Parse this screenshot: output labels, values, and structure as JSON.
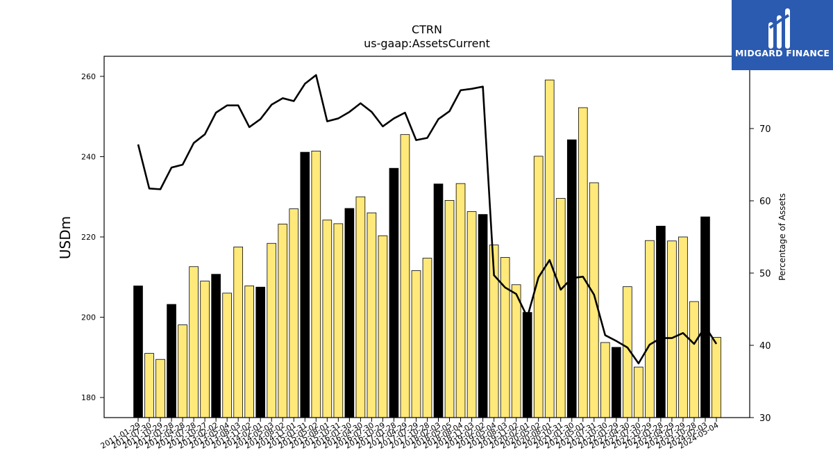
{
  "brand": {
    "name": "MIDGARD FINANCE",
    "logo_icon": "midgard-bars-logo",
    "color": "#2b5bb0"
  },
  "chart_data": {
    "type": "bar",
    "title": "CTRN",
    "subtitle": "us-gaap:AssetsCurrent",
    "ylabel": "USDm",
    "y2label": "Percentage of Assets",
    "ylim": [
      175,
      265
    ],
    "y2lim": [
      30,
      80
    ],
    "yticks": [
      180,
      200,
      220,
      240,
      260
    ],
    "y2ticks": [
      30,
      40,
      50,
      60,
      70
    ],
    "colors": {
      "highlight_bar": "#000000",
      "normal_bar": "#ffe97a",
      "line": "#000000"
    },
    "categories": [
      "2011-01-29",
      "2011-07-30",
      "2011-10-29",
      "2012-01-28",
      "2012-04-28",
      "2012-07-28",
      "2012-10-27",
      "2013-02-02",
      "2013-05-04",
      "2013-08-03",
      "2013-11-02",
      "2014-02-01",
      "2014-05-03",
      "2014-08-02",
      "2014-11-01",
      "2015-01-31",
      "2015-05-02",
      "2015-08-01",
      "2015-10-31",
      "2016-01-30",
      "2016-04-30",
      "2016-07-30",
      "2016-10-29",
      "2017-01-28",
      "2017-04-29",
      "2017-07-29",
      "2017-10-28",
      "2018-02-03",
      "2018-05-05",
      "2018-08-04",
      "2018-11-03",
      "2019-02-02",
      "2019-05-04",
      "2019-08-03",
      "2019-11-02",
      "2020-02-01",
      "2020-05-02",
      "2020-08-01",
      "2020-10-31",
      "2021-01-30",
      "2021-05-01",
      "2021-07-31",
      "2021-10-30",
      "2022-01-29",
      "2022-04-30",
      "2022-07-30",
      "2022-10-29",
      "2023-01-28",
      "2023-04-29",
      "2023-07-29",
      "2023-10-28",
      "2024-02-03",
      "2024-05-04"
    ],
    "highlight": [
      1,
      0,
      0,
      1,
      0,
      0,
      0,
      1,
      0,
      0,
      0,
      1,
      0,
      0,
      0,
      1,
      0,
      0,
      0,
      1,
      0,
      0,
      0,
      1,
      0,
      0,
      0,
      1,
      0,
      0,
      0,
      1,
      0,
      0,
      0,
      1,
      0,
      0,
      0,
      1,
      0,
      0,
      0,
      1,
      0,
      0,
      0,
      1,
      0,
      0,
      0,
      1,
      0
    ],
    "values": [
      207.8,
      191.0,
      189.5,
      203.2,
      198.1,
      212.6,
      209.0,
      210.7,
      206.0,
      217.5,
      207.8,
      207.5,
      218.4,
      223.2,
      227.0,
      241.1,
      241.4,
      224.2,
      223.3,
      227.1,
      230.0,
      226.0,
      220.3,
      237.1,
      245.5,
      211.6,
      214.7,
      233.2,
      229.1,
      233.3,
      226.3,
      225.6,
      218.0,
      214.9,
      208.1,
      201.2,
      240.1,
      259.1,
      229.6,
      244.2,
      252.2,
      233.5,
      193.7,
      192.5,
      207.6,
      187.6,
      219.1,
      222.7,
      219.0,
      220.0,
      203.9,
      225.0,
      195.0
    ],
    "line_series": {
      "name": "Percentage of Assets",
      "values": [
        67.8,
        61.7,
        61.6,
        64.6,
        65.0,
        68.0,
        69.2,
        72.2,
        73.2,
        73.2,
        70.2,
        71.3,
        73.3,
        74.2,
        73.8,
        76.2,
        77.4,
        71.0,
        71.4,
        72.3,
        73.5,
        72.3,
        70.3,
        71.4,
        72.2,
        68.4,
        68.7,
        71.3,
        72.4,
        75.3,
        75.5,
        75.8,
        49.7,
        48.0,
        47.1,
        43.9,
        49.4,
        51.8,
        47.7,
        49.3,
        49.5,
        47.0,
        41.4,
        40.6,
        39.7,
        37.5,
        40.1,
        41.0,
        41.0,
        41.7,
        40.2,
        42.6,
        40.2
      ]
    }
  }
}
